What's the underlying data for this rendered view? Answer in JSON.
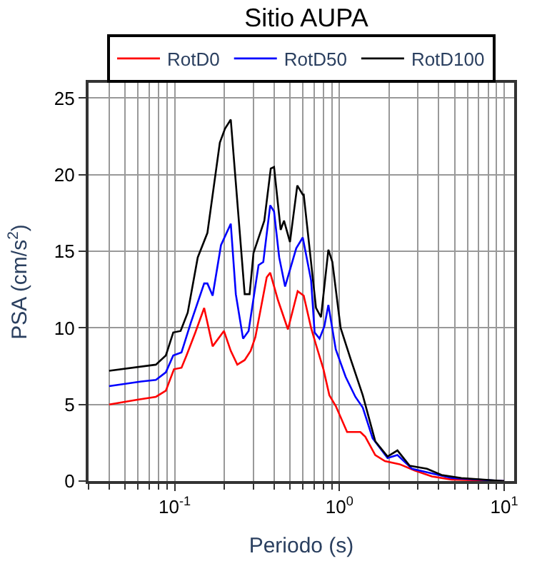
{
  "chart_data": {
    "type": "line",
    "title": "Sitio AUPA",
    "xlabel": "Periodo (s)",
    "ylabel": "PSA (cm/s$^{2}$)",
    "log": "x",
    "grid": true,
    "legend": "top",
    "marker": "none",
    "line_style": "solid",
    "xlim": [
      0.03,
      11.5
    ],
    "ylim": [
      0,
      26
    ],
    "xticks": [
      {
        "value": 0.1,
        "label": "10$^{-1}$"
      },
      {
        "value": 1,
        "label": "10$^{0}$"
      },
      {
        "value": 10,
        "label": "10$^{1}$"
      }
    ],
    "yticks": [
      0,
      5,
      10,
      15,
      20,
      25
    ],
    "series": [
      {
        "name": "RotD0",
        "color": "#ff0000",
        "x": [
          0.04,
          0.0585,
          0.0769,
          0.0884,
          0.099,
          0.11,
          0.118,
          0.1335,
          0.151,
          0.17,
          0.199,
          0.219,
          0.24,
          0.266,
          0.289,
          0.309,
          0.362,
          0.38,
          0.424,
          0.487,
          0.558,
          0.607,
          0.673,
          0.721,
          0.8,
          0.869,
          0.95,
          1.113,
          1.34,
          1.435,
          1.65,
          1.89,
          2.32,
          2.85,
          3.64,
          4.79,
          10
        ],
        "values": [
          5.0,
          5.3,
          5.5,
          5.9,
          7.3,
          7.4,
          8.2,
          9.7,
          11.3,
          8.8,
          9.8,
          8.5,
          7.6,
          7.9,
          8.5,
          9.4,
          13.3,
          13.6,
          11.8,
          9.9,
          12.4,
          12.1,
          10.0,
          8.9,
          7.3,
          5.6,
          4.9,
          3.2,
          3.2,
          2.9,
          1.7,
          1.3,
          1.1,
          0.7,
          0.3,
          0.1,
          0
        ]
      },
      {
        "name": "RotD50",
        "color": "#0000ff",
        "x": [
          0.04,
          0.0626,
          0.0769,
          0.0884,
          0.098,
          0.11,
          0.125,
          0.151,
          0.158,
          0.17,
          0.191,
          0.219,
          0.235,
          0.26,
          0.281,
          0.323,
          0.345,
          0.38,
          0.401,
          0.431,
          0.468,
          0.547,
          0.599,
          0.673,
          0.707,
          0.757,
          0.81,
          0.857,
          0.95,
          1.091,
          1.25,
          1.386,
          1.59,
          1.96,
          2.25,
          2.76,
          3.64,
          4.79,
          10
        ],
        "values": [
          6.2,
          6.5,
          6.6,
          7.1,
          8.2,
          8.4,
          10.3,
          12.9,
          12.9,
          12.1,
          15.4,
          16.8,
          12.2,
          9.3,
          9.8,
          14.1,
          14.3,
          18.0,
          17.6,
          14.6,
          12.7,
          15.2,
          15.9,
          13.1,
          9.7,
          9.3,
          10.1,
          11.5,
          8.6,
          6.8,
          5.5,
          4.8,
          2.8,
          1.5,
          1.7,
          0.8,
          0.5,
          0.2,
          0
        ]
      },
      {
        "name": "RotD100",
        "color": "#000000",
        "x": [
          0.04,
          0.0769,
          0.0884,
          0.098,
          0.1086,
          0.12,
          0.138,
          0.158,
          0.188,
          0.202,
          0.219,
          0.266,
          0.285,
          0.301,
          0.35,
          0.383,
          0.401,
          0.44,
          0.461,
          0.501,
          0.555,
          0.599,
          0.607,
          0.721,
          0.773,
          0.857,
          0.906,
          1.017,
          1.167,
          1.386,
          1.65,
          1.96,
          2.25,
          2.67,
          3.4,
          4.17,
          5.5,
          10
        ],
        "values": [
          7.2,
          7.6,
          8.2,
          9.7,
          9.8,
          11.0,
          14.6,
          16.2,
          22.1,
          23.0,
          23.6,
          12.2,
          12.2,
          14.9,
          17.0,
          20.4,
          20.5,
          16.4,
          17.0,
          15.6,
          19.3,
          18.7,
          18.7,
          11.3,
          10.7,
          15.1,
          14.3,
          10.0,
          8.0,
          5.6,
          2.6,
          1.6,
          2.0,
          1.0,
          0.8,
          0.4,
          0.2,
          0
        ]
      }
    ]
  }
}
